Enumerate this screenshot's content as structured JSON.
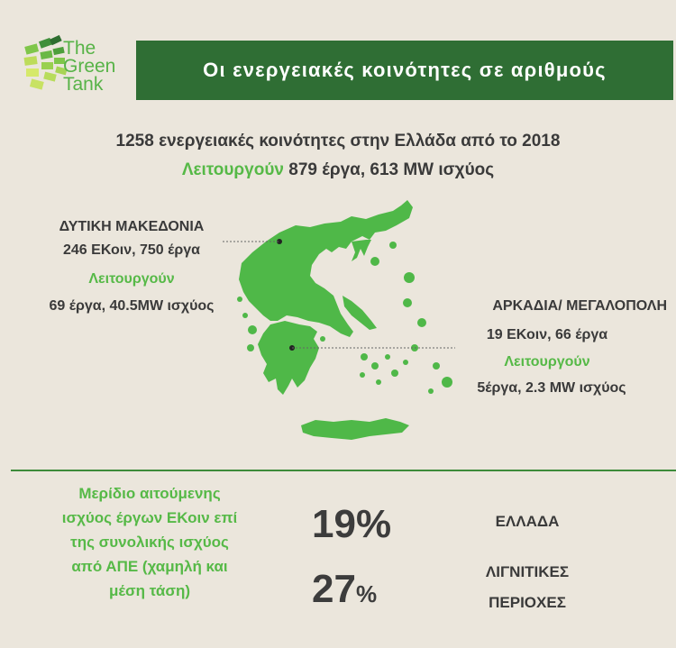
{
  "logo": {
    "line1": "The",
    "line2": "Green",
    "line3": "Tank"
  },
  "banner": {
    "title": "Οι ενεργειακές κοινότητες σε αριθμούς"
  },
  "summary": {
    "line1": "1258 ενεργειακές κοινότητες στην Ελλάδα από το 2018",
    "line2_green": "Λειτουργούν",
    "line2_rest": " 879 έργα, 613 MW ισχύος"
  },
  "west_macedonia": {
    "name": "ΔΥΤΙΚΗ ΜΑΚΕΔΟΝΙΑ",
    "stats": "246 ΕΚοιν, 750 έργα",
    "operating_label": "Λειτουργούν",
    "operating": "69 έργα, 40.5MW ισχύος"
  },
  "arcadia": {
    "name": "ΑΡΚΑΔΙΑ/ ΜΕΓΑΛΟΠΟΛΗ",
    "stats": "19 ΕΚοιν, 66 έργα",
    "operating_label": "Λειτουργούν",
    "operating": "5έργα, 2.3 MW ισχύος"
  },
  "share": {
    "description_lines": [
      "Μερίδιο αιτούμενης",
      "ισχύος έργων ΕΚοιν επί",
      "της συνολικής ισχύος",
      "από ΑΠΕ (χαμηλή και",
      "μέση τάση)"
    ],
    "greece_value": "19",
    "greece_label": "ΕΛΛΑΔΑ",
    "lignite_value": "27",
    "lignite_label_line1": "ΛΙΓΝΙΤΙΚΕΣ",
    "lignite_label_line2": "ΠΕΡΙΟΧΕΣ",
    "percent_symbol": "%"
  },
  "colors": {
    "banner": "#2f6e34",
    "accent_green": "#56b947",
    "map_green": "#4fb848",
    "background": "#ebe6dc"
  }
}
